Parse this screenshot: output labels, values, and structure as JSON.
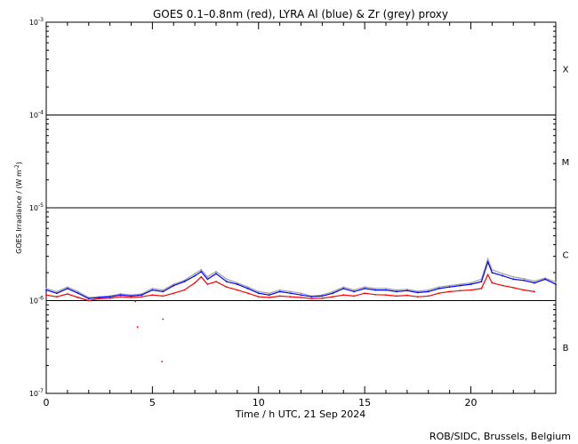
{
  "chart_data": {
    "type": "line",
    "title": "GOES 0.1–0.8nm (red), LYRA Al (blue) & Zr (grey) proxy",
    "xlabel": "Time / h UTC, 21 Sep 2024",
    "ylabel": "GOES Irradiance / (W m",
    "ylabel_sup": "-2",
    "ylabel_close": ")",
    "credit": "ROB/SIDC, Brussels, Belgium",
    "scale_y": "log",
    "xlim": [
      0,
      24
    ],
    "ylim": [
      1e-07,
      0.001
    ],
    "grid": "horizontal lines at class boundaries",
    "x_ticks": [
      {
        "value": 0,
        "label": "0"
      },
      {
        "value": 5,
        "label": "5"
      },
      {
        "value": 10,
        "label": "10"
      },
      {
        "value": 15,
        "label": "15"
      },
      {
        "value": 20,
        "label": "20"
      }
    ],
    "y_ticks": [
      {
        "exp": -3,
        "base": "10",
        "sup": "-3"
      },
      {
        "exp": -4,
        "base": "10",
        "sup": "-4"
      },
      {
        "exp": -5,
        "base": "10",
        "sup": "-5"
      },
      {
        "exp": -6,
        "base": "10",
        "sup": "-6"
      },
      {
        "exp": -7,
        "base": "10",
        "sup": "-7"
      }
    ],
    "class_labels": [
      {
        "label": "X",
        "exp": -3.5
      },
      {
        "label": "M",
        "exp": -4.5
      },
      {
        "label": "C",
        "exp": -5.5
      },
      {
        "label": "B",
        "exp": -6.5
      }
    ],
    "series": [
      {
        "key": "goes",
        "color": "#ff0000",
        "x": [
          0.0,
          0.5,
          1.0,
          1.5,
          2.0,
          2.5,
          3.0,
          3.5,
          4.0,
          4.5,
          5.0,
          5.5,
          6.0,
          6.5,
          7.0,
          7.3,
          7.6,
          8.0,
          8.5,
          9.0,
          9.5,
          10.0,
          10.5,
          11.0,
          11.5,
          12.0,
          12.5,
          13.0,
          13.5,
          14.0,
          14.5,
          15.0,
          15.5,
          16.0,
          16.5,
          17.0,
          17.5,
          18.0,
          18.5,
          19.0,
          19.5,
          20.0,
          20.5,
          20.8,
          21.0,
          21.5,
          22.0,
          22.5,
          23.0
        ],
        "y": [
          1.15e-06,
          1.1e-06,
          1.18e-06,
          1.08e-06,
          1e-06,
          1.05e-06,
          1.06e-06,
          1.1e-06,
          1.08e-06,
          1.1e-06,
          1.15e-06,
          1.12e-06,
          1.2e-06,
          1.3e-06,
          1.55e-06,
          1.8e-06,
          1.5e-06,
          1.6e-06,
          1.4e-06,
          1.3e-06,
          1.2e-06,
          1.1e-06,
          1.08e-06,
          1.12e-06,
          1.1e-06,
          1.08e-06,
          1.05e-06,
          1.06e-06,
          1.1e-06,
          1.15e-06,
          1.12e-06,
          1.2e-06,
          1.16e-06,
          1.15e-06,
          1.12e-06,
          1.14e-06,
          1.1e-06,
          1.12e-06,
          1.2e-06,
          1.25e-06,
          1.28e-06,
          1.3e-06,
          1.35e-06,
          1.9e-06,
          1.55e-06,
          1.45e-06,
          1.38e-06,
          1.3e-06,
          1.25e-06
        ]
      },
      {
        "key": "lyra_al",
        "color": "#0000ff",
        "x": [
          0.0,
          0.5,
          1.0,
          1.5,
          2.0,
          2.5,
          3.0,
          3.5,
          4.0,
          4.5,
          5.0,
          5.5,
          6.0,
          6.5,
          7.0,
          7.3,
          7.6,
          8.0,
          8.5,
          9.0,
          9.5,
          10.0,
          10.5,
          11.0,
          11.5,
          12.0,
          12.5,
          13.0,
          13.5,
          14.0,
          14.5,
          15.0,
          15.5,
          16.0,
          16.5,
          17.0,
          17.5,
          18.0,
          18.5,
          19.0,
          19.5,
          20.0,
          20.5,
          20.8,
          21.0,
          21.5,
          22.0,
          22.5,
          23.0,
          23.5,
          24.0
        ],
        "y": [
          1.3e-06,
          1.2e-06,
          1.35e-06,
          1.2e-06,
          1.05e-06,
          1.08e-06,
          1.1e-06,
          1.15e-06,
          1.12e-06,
          1.15e-06,
          1.3e-06,
          1.25e-06,
          1.45e-06,
          1.6e-06,
          1.85e-06,
          2.05e-06,
          1.7e-06,
          1.95e-06,
          1.6e-06,
          1.5e-06,
          1.35e-06,
          1.2e-06,
          1.15e-06,
          1.25e-06,
          1.2e-06,
          1.15e-06,
          1.1e-06,
          1.12e-06,
          1.2e-06,
          1.35e-06,
          1.25e-06,
          1.35e-06,
          1.3e-06,
          1.3e-06,
          1.25e-06,
          1.28e-06,
          1.22e-06,
          1.25e-06,
          1.35e-06,
          1.4e-06,
          1.45e-06,
          1.5e-06,
          1.6e-06,
          2.6e-06,
          2e-06,
          1.85e-06,
          1.7e-06,
          1.65e-06,
          1.55e-06,
          1.7e-06,
          1.5e-06
        ]
      },
      {
        "key": "lyra_zr",
        "color": "#a0a0a0",
        "x": [
          0.0,
          0.5,
          1.0,
          1.5,
          2.0,
          2.5,
          3.0,
          3.5,
          4.0,
          4.5,
          5.0,
          5.5,
          6.0,
          6.5,
          7.0,
          7.3,
          7.6,
          8.0,
          8.5,
          9.0,
          9.5,
          10.0,
          10.5,
          11.0,
          11.5,
          12.0,
          12.5,
          13.0,
          13.5,
          14.0,
          14.5,
          15.0,
          15.5,
          16.0,
          16.5,
          17.0,
          17.5,
          18.0,
          18.5,
          19.0,
          19.5,
          20.0,
          20.5,
          20.8,
          21.0,
          21.5,
          22.0,
          22.5,
          23.0,
          23.5,
          24.0
        ],
        "y": [
          1.35e-06,
          1.25e-06,
          1.4e-06,
          1.25e-06,
          1.08e-06,
          1.1e-06,
          1.12e-06,
          1.18e-06,
          1.15e-06,
          1.18e-06,
          1.35e-06,
          1.3e-06,
          1.5e-06,
          1.65e-06,
          1.95e-06,
          2.15e-06,
          1.8e-06,
          2.05e-06,
          1.7e-06,
          1.55e-06,
          1.4e-06,
          1.25e-06,
          1.2e-06,
          1.3e-06,
          1.25e-06,
          1.2e-06,
          1.12e-06,
          1.15e-06,
          1.25e-06,
          1.4e-06,
          1.3e-06,
          1.4e-06,
          1.35e-06,
          1.35e-06,
          1.3e-06,
          1.32e-06,
          1.26e-06,
          1.3e-06,
          1.4e-06,
          1.45e-06,
          1.5e-06,
          1.55e-06,
          1.7e-06,
          2.8e-06,
          2.15e-06,
          1.95e-06,
          1.8e-06,
          1.72e-06,
          1.62e-06,
          1.75e-06,
          1.58e-06
        ]
      }
    ],
    "outlier_points": [
      {
        "x": 4.3,
        "y": 5.2e-07
      },
      {
        "x": 5.5,
        "y": 6.3e-07
      },
      {
        "x": 5.45,
        "y": 2.2e-07
      },
      {
        "x": 4.2,
        "y": 9.8e-07
      }
    ]
  }
}
